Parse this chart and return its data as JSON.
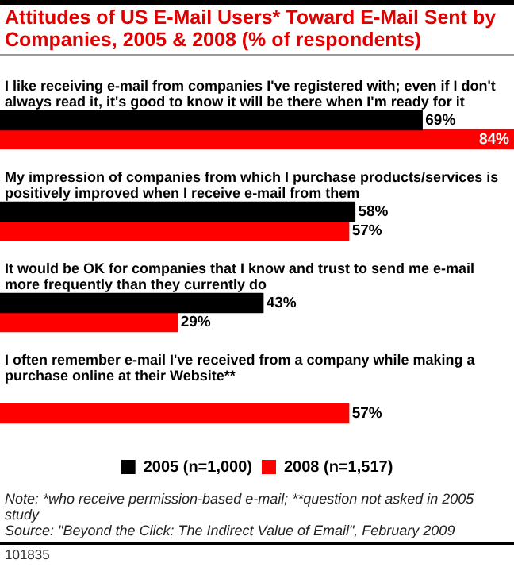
{
  "chart_data": {
    "type": "bar",
    "orientation": "horizontal",
    "title": "Attitudes of US E-Mail Users* Toward E-Mail Sent by Companies, 2005 & 2008 (% of respondents)",
    "categories": [
      "I like receiving e-mail from companies I've registered with; even if I don't always read it, it's good to know it will be there when I'm ready for it",
      "My impression of companies from which I purchase products/services is positively improved when I receive e-mail from them",
      "It would be OK for companies that I know and trust to send me e-mail more frequently than they currently do",
      "I often remember e-mail I've received from a company while making a purchase online at their Website**"
    ],
    "series": [
      {
        "name": "2005 (n=1,000)",
        "color": "#000000",
        "values": [
          69,
          58,
          43,
          null
        ],
        "value_labels": [
          "69%",
          "58%",
          "43%",
          null
        ]
      },
      {
        "name": "2008 (n=1,517)",
        "color": "#ff0000",
        "values": [
          84,
          57,
          29,
          57
        ],
        "value_labels": [
          "84%",
          "57%",
          "29%",
          "57%"
        ]
      }
    ],
    "legend": "bottom",
    "annotations": [
      "Note: *who receive permission-based e-mail; **question not asked in 2005 study",
      "Source: \"Beyond the Click: The Indirect Value of Email\", February 2009",
      "101835"
    ]
  }
}
